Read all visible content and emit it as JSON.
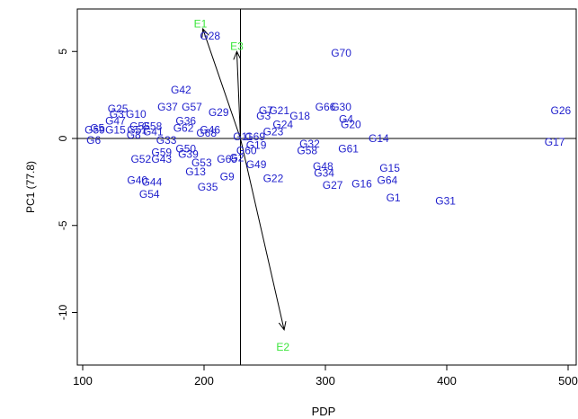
{
  "chart_data": {
    "type": "scatter",
    "subtype": "biplot",
    "xlabel": "PDP",
    "ylabel": "PC1 (77.8)",
    "xlim": [
      100,
      500
    ],
    "ylim": [
      -12.5,
      7.5
    ],
    "x_ticks": [
      100,
      200,
      300,
      400,
      500
    ],
    "y_ticks": [
      5,
      0,
      -5,
      -10
    ],
    "y_tick_labels": [
      "5",
      "0",
      "-5",
      "-10"
    ],
    "grid": false,
    "reference_lines": {
      "x": 230,
      "y": 0
    },
    "colors": {
      "genotype": "#1f1fcc",
      "environment": "#3ce63c",
      "axes": "#000000",
      "vector": "#000000"
    },
    "environment_origin": {
      "x": 230,
      "y": 0
    },
    "environments": [
      {
        "label": "E1",
        "x": 197,
        "y": 6.6,
        "arrow_x": 199,
        "arrow_y": 6.3
      },
      {
        "label": "E3",
        "x": 227,
        "y": 5.3,
        "arrow_x": 227,
        "arrow_y": 5.0
      },
      {
        "label": "E2",
        "x": 265,
        "y": -12.0,
        "arrow_x": 266,
        "arrow_y": -11.0
      }
    ],
    "genotypes": [
      {
        "label": "G28",
        "x": 205,
        "y": 5.9
      },
      {
        "label": "G70",
        "x": 313,
        "y": 4.9
      },
      {
        "label": "G42",
        "x": 181,
        "y": 2.8
      },
      {
        "label": "G26",
        "x": 494,
        "y": 1.6
      },
      {
        "label": "G25",
        "x": 129,
        "y": 1.7
      },
      {
        "label": "G37",
        "x": 170,
        "y": 1.8
      },
      {
        "label": "G57",
        "x": 190,
        "y": 1.8
      },
      {
        "label": "G29",
        "x": 212,
        "y": 1.5
      },
      {
        "label": "G7",
        "x": 251,
        "y": 1.6
      },
      {
        "label": "G21",
        "x": 262,
        "y": 1.6
      },
      {
        "label": "G66",
        "x": 300,
        "y": 1.8
      },
      {
        "label": "G30",
        "x": 313,
        "y": 1.8
      },
      {
        "label": "G18",
        "x": 279,
        "y": 1.3
      },
      {
        "label": "G3",
        "x": 249,
        "y": 1.3
      },
      {
        "label": "G4",
        "x": 317,
        "y": 1.1
      },
      {
        "label": "G10",
        "x": 144,
        "y": 1.4
      },
      {
        "label": "G43b",
        "display": "G3",
        "x": 128,
        "y": 1.4
      },
      {
        "label": "G47",
        "x": 127,
        "y": 1.0
      },
      {
        "label": "G36",
        "x": 185,
        "y": 1.0
      },
      {
        "label": "G24",
        "x": 265,
        "y": 0.8
      },
      {
        "label": "G20",
        "x": 321,
        "y": 0.8
      },
      {
        "label": "G55",
        "x": 147,
        "y": 0.7
      },
      {
        "label": "G58b",
        "display": "G58",
        "x": 157,
        "y": 0.7
      },
      {
        "label": "G62",
        "x": 183,
        "y": 0.6
      },
      {
        "label": "G5",
        "x": 112,
        "y": 0.6
      },
      {
        "label": "G15b",
        "display": "G15",
        "x": 127,
        "y": 0.5
      },
      {
        "label": "G51",
        "x": 145,
        "y": 0.5
      },
      {
        "label": "G41",
        "x": 158,
        "y": 0.4
      },
      {
        "label": "G46",
        "x": 205,
        "y": 0.5
      },
      {
        "label": "G23",
        "x": 257,
        "y": 0.4
      },
      {
        "label": "G59b",
        "display": "G59",
        "x": 110,
        "y": 0.5
      },
      {
        "label": "G6",
        "x": 109,
        "y": -0.1
      },
      {
        "label": "G8",
        "x": 142,
        "y": 0.2
      },
      {
        "label": "G68",
        "x": 202,
        "y": 0.3
      },
      {
        "label": "G11",
        "x": 232,
        "y": 0.1
      },
      {
        "label": "G69",
        "x": 242,
        "y": 0.1
      },
      {
        "label": "G14",
        "x": 344,
        "y": 0.0
      },
      {
        "label": "G17",
        "x": 489,
        "y": -0.2
      },
      {
        "label": "G33",
        "x": 169,
        "y": -0.1
      },
      {
        "label": "G32",
        "x": 287,
        "y": -0.3
      },
      {
        "label": "G19",
        "x": 243,
        "y": -0.4
      },
      {
        "label": "G50",
        "x": 185,
        "y": -0.6
      },
      {
        "label": "G60",
        "x": 235,
        "y": -0.7
      },
      {
        "label": "G58",
        "x": 285,
        "y": -0.7
      },
      {
        "label": "G61",
        "x": 319,
        "y": -0.6
      },
      {
        "label": "G59",
        "x": 165,
        "y": -0.8
      },
      {
        "label": "G39",
        "x": 187,
        "y": -0.9
      },
      {
        "label": "G52",
        "x": 148,
        "y": -1.2
      },
      {
        "label": "G43",
        "x": 165,
        "y": -1.2
      },
      {
        "label": "G53",
        "x": 198,
        "y": -1.4
      },
      {
        "label": "G2",
        "x": 227,
        "y": -1.1
      },
      {
        "label": "G65",
        "x": 219,
        "y": -1.2
      },
      {
        "label": "G49",
        "x": 243,
        "y": -1.5
      },
      {
        "label": "G48",
        "x": 298,
        "y": -1.6
      },
      {
        "label": "G15",
        "x": 353,
        "y": -1.7
      },
      {
        "label": "G13",
        "x": 193,
        "y": -1.9
      },
      {
        "label": "G34",
        "x": 299,
        "y": -2.0
      },
      {
        "label": "G9",
        "x": 219,
        "y": -2.2
      },
      {
        "label": "G22",
        "x": 257,
        "y": -2.3
      },
      {
        "label": "G64",
        "x": 351,
        "y": -2.4
      },
      {
        "label": "G40",
        "x": 145,
        "y": -2.4
      },
      {
        "label": "G44",
        "x": 157,
        "y": -2.5
      },
      {
        "label": "G27",
        "x": 306,
        "y": -2.7
      },
      {
        "label": "G16",
        "x": 330,
        "y": -2.6
      },
      {
        "label": "G35",
        "x": 203,
        "y": -2.8
      },
      {
        "label": "G54",
        "x": 155,
        "y": -3.2
      },
      {
        "label": "G1",
        "x": 356,
        "y": -3.4
      },
      {
        "label": "G31",
        "x": 399,
        "y": -3.6
      }
    ]
  }
}
